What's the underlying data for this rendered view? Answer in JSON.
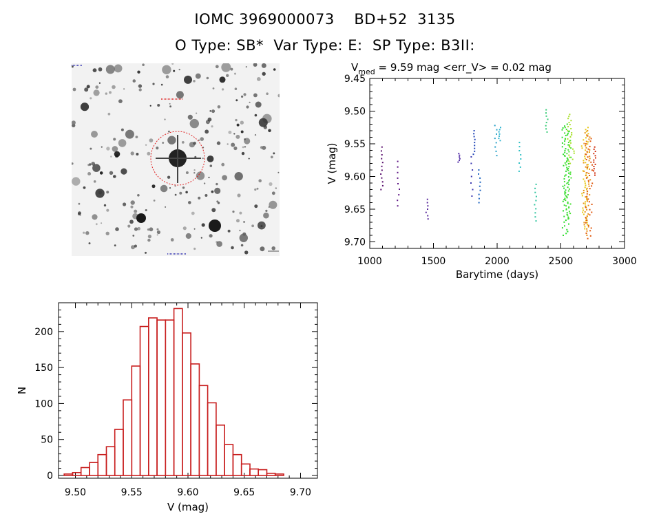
{
  "header": {
    "title_line1": "IOMC 3969000073    BD+52  3135",
    "title_line2": "O Type: SB*  Var Type: E:  SP Type: B3II:"
  },
  "finder": {
    "alt": "Star field finder chart"
  },
  "chart_data": [
    {
      "type": "scatter",
      "title_prefix": "V",
      "title_sub": "med",
      "title_rest": " = 9.59 mag <err_V> = 0.02 mag",
      "xlabel": "Barytime (days)",
      "ylabel": "V (mag)",
      "xlim": [
        1000,
        3000
      ],
      "ylim": [
        9.71,
        9.45
      ],
      "xticks": [
        1000,
        1500,
        2000,
        2500,
        3000
      ],
      "xtick_labels": [
        "1000",
        "1500",
        "2000",
        "2500",
        "3000"
      ],
      "yticks": [
        9.45,
        9.5,
        9.55,
        9.6,
        9.65,
        9.7
      ],
      "ytick_labels": [
        "9.45",
        "9.50",
        "9.55",
        "9.60",
        "9.65",
        "9.70"
      ],
      "groups": [
        {
          "x": 1095,
          "vmin": 9.555,
          "vmax": 9.62,
          "color": "#5a0f6e",
          "n": 12
        },
        {
          "x": 1225,
          "vmin": 9.577,
          "vmax": 9.645,
          "color": "#5e1585",
          "n": 9
        },
        {
          "x": 1450,
          "vmin": 9.635,
          "vmax": 9.665,
          "color": "#5a2a9c",
          "n": 7
        },
        {
          "x": 1700,
          "vmin": 9.565,
          "vmax": 9.578,
          "color": "#5631a8",
          "n": 6
        },
        {
          "x": 1800,
          "vmin": 9.57,
          "vmax": 9.63,
          "color": "#3b38b0",
          "n": 7
        },
        {
          "x": 1820,
          "vmin": 9.53,
          "vmax": 9.566,
          "color": "#2448b8",
          "n": 9
        },
        {
          "x": 1860,
          "vmin": 9.59,
          "vmax": 9.64,
          "color": "#1d64c0",
          "n": 9
        },
        {
          "x": 1990,
          "vmin": 9.522,
          "vmax": 9.568,
          "color": "#28a0c8",
          "n": 8
        },
        {
          "x": 2020,
          "vmin": 9.525,
          "vmax": 9.545,
          "color": "#30b4d0",
          "n": 7
        },
        {
          "x": 2180,
          "vmin": 9.548,
          "vmax": 9.592,
          "color": "#2ec0c4",
          "n": 8
        },
        {
          "x": 2300,
          "vmin": 9.612,
          "vmax": 9.668,
          "color": "#30c4a0",
          "n": 10
        },
        {
          "x": 2390,
          "vmin": 9.498,
          "vmax": 9.532,
          "color": "#38cc78",
          "n": 8
        },
        {
          "x": 2538,
          "vmin": 9.52,
          "vmax": 9.69,
          "color": "#2cdc2c",
          "n": 60
        },
        {
          "x": 2555,
          "vmin": 9.525,
          "vmax": 9.665,
          "color": "#44e030",
          "n": 50
        },
        {
          "x": 2580,
          "vmin": 9.505,
          "vmax": 9.58,
          "color": "#a8e028",
          "n": 25
        },
        {
          "x": 2690,
          "vmin": 9.525,
          "vmax": 9.68,
          "color": "#e8c818",
          "n": 50
        },
        {
          "x": 2705,
          "vmin": 9.53,
          "vmax": 9.69,
          "color": "#e89010",
          "n": 50
        },
        {
          "x": 2720,
          "vmin": 9.538,
          "vmax": 9.695,
          "color": "#e05a10",
          "n": 40
        },
        {
          "x": 2765,
          "vmin": 9.555,
          "vmax": 9.598,
          "color": "#d03010",
          "n": 14
        }
      ]
    },
    {
      "type": "bar",
      "xlabel": "V (mag)",
      "ylabel": "N",
      "xlim": [
        9.485,
        9.715
      ],
      "ylim": [
        0,
        240
      ],
      "xticks": [
        9.5,
        9.55,
        9.6,
        9.65,
        9.7
      ],
      "xtick_labels": [
        "9.50",
        "9.55",
        "9.60",
        "9.65",
        "9.70"
      ],
      "yticks": [
        0,
        50,
        100,
        150,
        200
      ],
      "ytick_labels": [
        "0",
        "50",
        "100",
        "150",
        "200"
      ],
      "bin_start": 9.49,
      "bin_width": 0.0075,
      "counts": [
        2,
        4,
        11,
        18,
        29,
        40,
        64,
        105,
        152,
        207,
        219,
        216,
        216,
        232,
        198,
        155,
        125,
        101,
        70,
        43,
        29,
        16,
        9,
        8,
        3,
        2
      ],
      "color": "#c81e1e"
    }
  ]
}
